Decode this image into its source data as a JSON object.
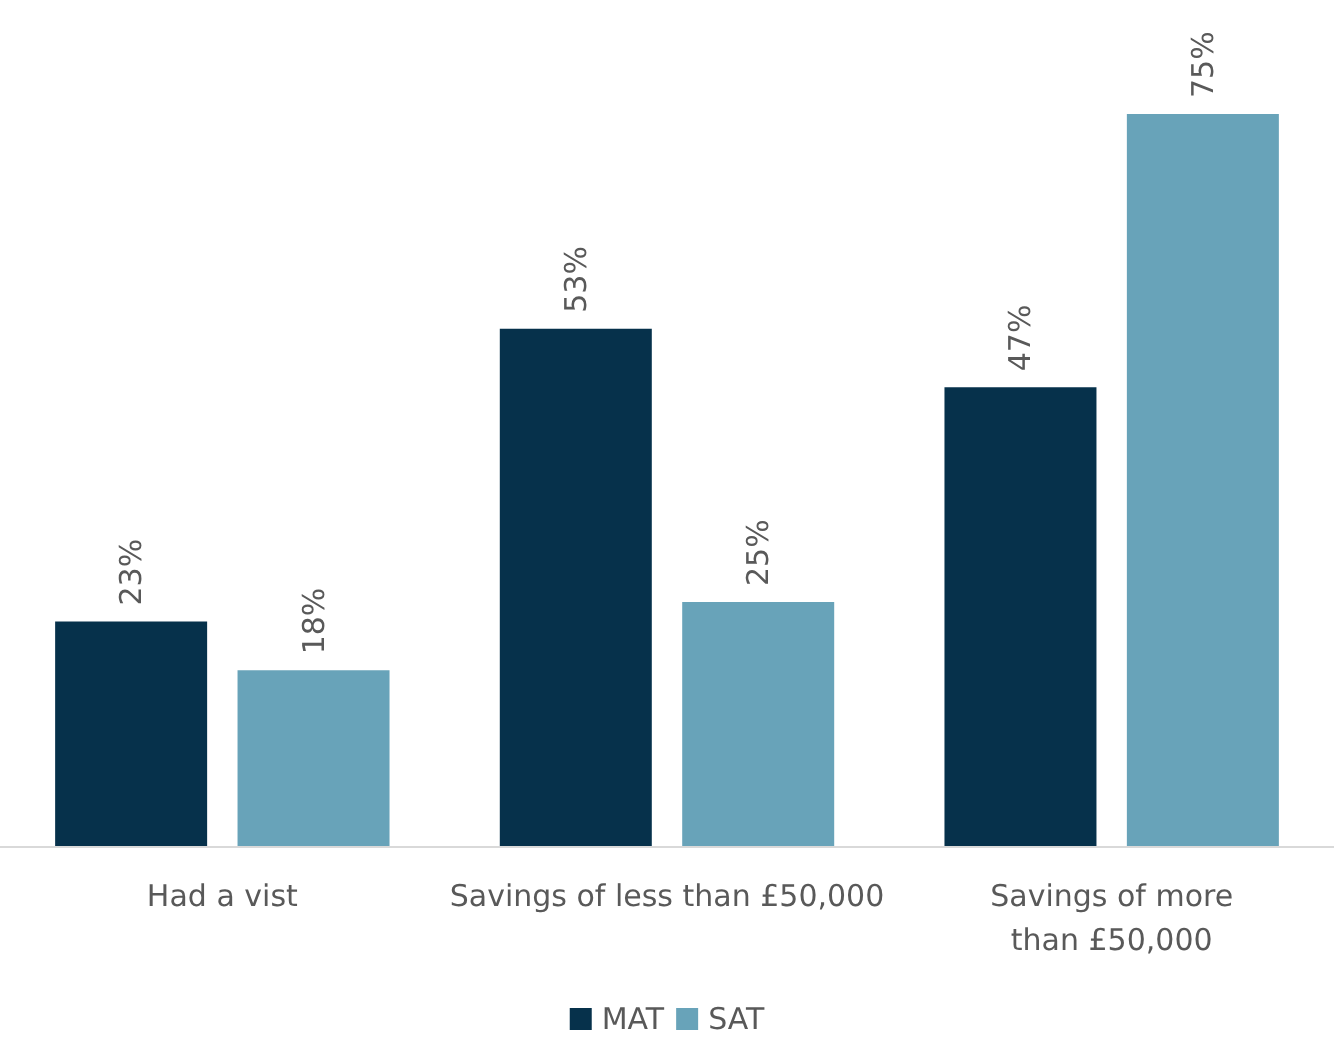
{
  "chart_data": {
    "type": "bar",
    "categories": [
      "Had a vist",
      "Savings of less than £50,000",
      "Savings of more than £50,000"
    ],
    "series": [
      {
        "name": "MAT",
        "color": "#06314b",
        "values": [
          23,
          53,
          47
        ],
        "value_labels": [
          "23%",
          "53%",
          "47%"
        ]
      },
      {
        "name": "SAT",
        "color": "#68a3b9",
        "values": [
          18,
          25,
          75
        ],
        "value_labels": [
          "18%",
          "25%",
          "75%"
        ]
      }
    ],
    "tick_labels": "x",
    "legend": "bottom"
  }
}
